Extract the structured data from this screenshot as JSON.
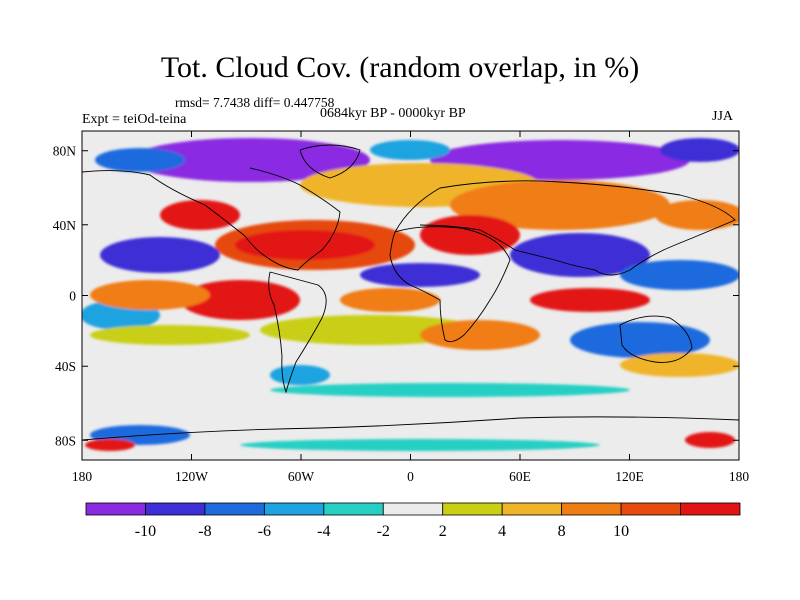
{
  "title": "Tot. Cloud Cov. (random overlap, in %)",
  "stats": "rmsd= 7.7438 diff= 0.447758",
  "experiment": "Expt = teiOd-teina",
  "period": "0684kyr BP - 0000kyr BP",
  "season": "JJA",
  "lon_ticks": [
    "180",
    "120W",
    "60W",
    "0",
    "60E",
    "120E",
    "180"
  ],
  "lat_ticks": [
    "80N",
    "40N",
    "0",
    "40S",
    "80S"
  ],
  "colorbar": {
    "labels": [
      "-10",
      "-8",
      "-6",
      "-4",
      "-2",
      "2",
      "4",
      "8",
      "10"
    ],
    "colors": [
      "#8a2be2",
      "#3d2ed6",
      "#1e6bde",
      "#1fa3e0",
      "#26cfc4",
      "#ececec",
      "#c9cf12",
      "#f0b429",
      "#f07d12",
      "#e64a10",
      "#e31414"
    ]
  },
  "map_colors": {
    "neutral": "#ececec",
    "purple": "#8a2be2",
    "indigo": "#3d2ed6",
    "blue": "#1e6bde",
    "sky": "#1fa3e0",
    "cyan": "#26cfc4",
    "yellow": "#c9cf12",
    "lightorange": "#f0b429",
    "orange": "#f07d12",
    "darkorange": "#e64a10",
    "red": "#e31414"
  }
}
